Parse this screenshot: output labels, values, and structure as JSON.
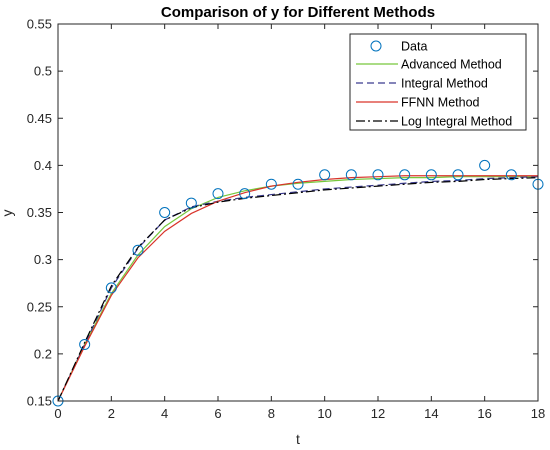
{
  "chart_data": {
    "type": "line",
    "title": "Comparison of y for Different Methods",
    "xlabel": "t",
    "ylabel": "y",
    "xlim": [
      0,
      18
    ],
    "ylim": [
      0.15,
      0.55
    ],
    "xticks": [
      0,
      2,
      4,
      6,
      8,
      10,
      12,
      14,
      16,
      18
    ],
    "yticks": [
      0.15,
      0.2,
      0.25,
      0.3,
      0.35,
      0.4,
      0.45,
      0.5,
      0.55
    ],
    "grid": false,
    "legend_position": "top-right",
    "series": [
      {
        "name": "Data",
        "style": "markers",
        "marker": "circle",
        "color": "#0072bd",
        "x": [
          0,
          1,
          2,
          3,
          4,
          5,
          6,
          7,
          8,
          9,
          10,
          11,
          12,
          13,
          14,
          15,
          16,
          17,
          18
        ],
        "y": [
          0.15,
          0.21,
          0.27,
          0.31,
          0.35,
          0.36,
          0.37,
          0.37,
          0.38,
          0.38,
          0.39,
          0.39,
          0.39,
          0.39,
          0.39,
          0.39,
          0.4,
          0.39,
          0.38
        ]
      },
      {
        "name": "Advanced Method",
        "style": "solid",
        "color": "#77c83c",
        "x": [
          0,
          1,
          2,
          3,
          4,
          5,
          6,
          7,
          8,
          9,
          10,
          11,
          12,
          13,
          14,
          15,
          16,
          17,
          18
        ],
        "y": [
          0.15,
          0.21,
          0.264,
          0.305,
          0.335,
          0.354,
          0.366,
          0.373,
          0.378,
          0.381,
          0.383,
          0.385,
          0.386,
          0.387,
          0.387,
          0.388,
          0.388,
          0.388,
          0.388
        ]
      },
      {
        "name": "Integral Method",
        "style": "dashed",
        "color": "#3b3b8f",
        "x": [
          0,
          1,
          2,
          3,
          4,
          5,
          6,
          7,
          8,
          9,
          10,
          11,
          12,
          13,
          14,
          15,
          16,
          17,
          18
        ],
        "y": [
          0.15,
          0.21,
          0.27,
          0.312,
          0.342,
          0.356,
          0.362,
          0.366,
          0.369,
          0.372,
          0.375,
          0.377,
          0.379,
          0.381,
          0.383,
          0.384,
          0.386,
          0.387,
          0.388
        ]
      },
      {
        "name": "FFNN Method",
        "style": "solid",
        "color": "#d9342b",
        "x": [
          0,
          1,
          2,
          3,
          4,
          5,
          6,
          7,
          8,
          9,
          10,
          11,
          12,
          13,
          14,
          15,
          16,
          17,
          18
        ],
        "y": [
          0.15,
          0.208,
          0.262,
          0.302,
          0.33,
          0.349,
          0.362,
          0.371,
          0.378,
          0.382,
          0.385,
          0.387,
          0.388,
          0.389,
          0.389,
          0.389,
          0.389,
          0.389,
          0.389
        ]
      },
      {
        "name": "Log Integral Method",
        "style": "dashdot",
        "color": "#000000",
        "x": [
          0,
          1,
          2,
          3,
          4,
          5,
          6,
          7,
          8,
          9,
          10,
          11,
          12,
          13,
          14,
          15,
          16,
          17,
          18
        ],
        "y": [
          0.15,
          0.212,
          0.272,
          0.313,
          0.342,
          0.355,
          0.361,
          0.365,
          0.368,
          0.371,
          0.374,
          0.376,
          0.378,
          0.38,
          0.382,
          0.383,
          0.385,
          0.386,
          0.387
        ]
      }
    ]
  }
}
